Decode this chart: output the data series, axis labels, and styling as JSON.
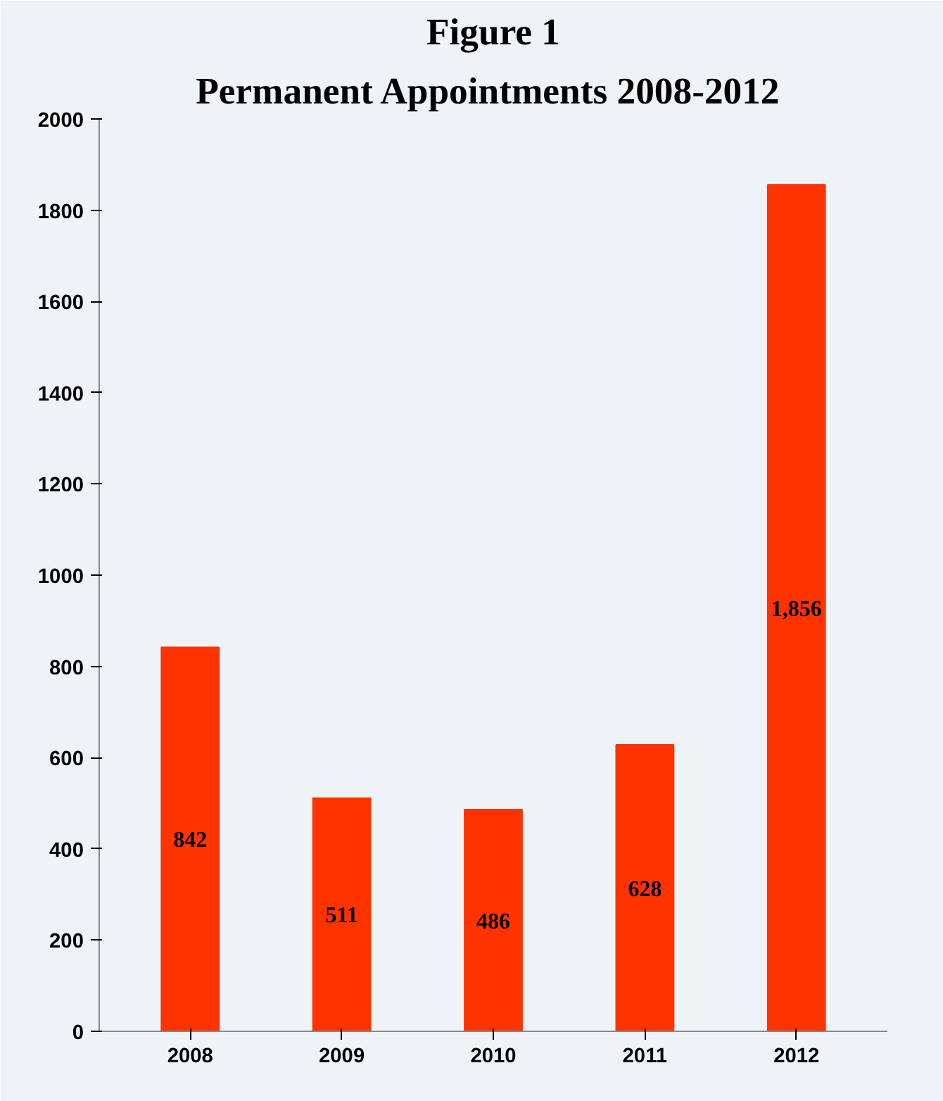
{
  "chart_data": {
    "type": "bar",
    "title": "Figure 1",
    "subtitle": "Permanent Appointments  2008-2012",
    "categories": [
      "2008",
      "2009",
      "2010",
      "2011",
      "2012"
    ],
    "values": [
      842,
      511,
      486,
      628,
      1856
    ],
    "value_labels": [
      "842",
      "511",
      "486",
      "628",
      "1,856"
    ],
    "color": "#ff3300",
    "ylim": [
      0,
      2000
    ],
    "yticks": [
      0,
      200,
      400,
      600,
      800,
      1000,
      1200,
      1400,
      1600,
      1800,
      2000
    ],
    "grid": false
  }
}
